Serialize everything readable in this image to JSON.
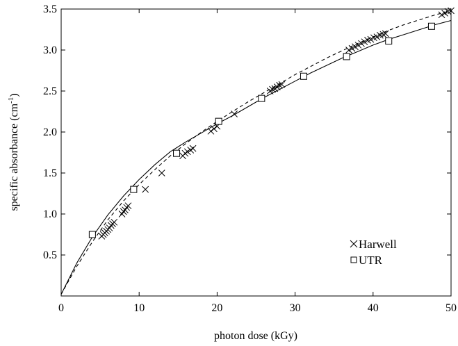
{
  "chart_data": {
    "type": "scatter",
    "title": "",
    "xlabel": "photon dose (kGy)",
    "ylabel": "specific absorbance (cm",
    "ylabel_superscript": "-1",
    "ylabel_suffix": ")",
    "xlim": [
      0,
      50
    ],
    "ylim": [
      0,
      3.5
    ],
    "xticks": [
      "0",
      "10",
      "20",
      "30",
      "40",
      "50"
    ],
    "yticks": [
      "0.5",
      "1.0",
      "1.5",
      "2.0",
      "2.5",
      "3.0",
      "3.5"
    ],
    "grid": false,
    "legend_position": "bottom-right",
    "series": [
      {
        "name": "Harwell",
        "marker": "x",
        "points": [
          [
            5.2,
            0.73
          ],
          [
            5.4,
            0.75
          ],
          [
            5.6,
            0.77
          ],
          [
            5.8,
            0.79
          ],
          [
            6.0,
            0.81
          ],
          [
            6.2,
            0.83
          ],
          [
            6.4,
            0.86
          ],
          [
            6.6,
            0.88
          ],
          [
            6.8,
            0.9
          ],
          [
            7.8,
            1.0
          ],
          [
            8.0,
            1.03
          ],
          [
            8.2,
            1.05
          ],
          [
            8.4,
            1.08
          ],
          [
            8.6,
            1.1
          ],
          [
            10.8,
            1.3
          ],
          [
            12.9,
            1.5
          ],
          [
            15.6,
            1.71
          ],
          [
            15.9,
            1.74
          ],
          [
            16.2,
            1.76
          ],
          [
            16.6,
            1.78
          ],
          [
            16.9,
            1.8
          ],
          [
            19.2,
            2.01
          ],
          [
            19.6,
            2.04
          ],
          [
            20.0,
            2.07
          ],
          [
            22.2,
            2.22
          ],
          [
            26.8,
            2.5
          ],
          [
            27.1,
            2.52
          ],
          [
            27.4,
            2.53
          ],
          [
            27.7,
            2.55
          ],
          [
            28.0,
            2.57
          ],
          [
            28.3,
            2.58
          ],
          [
            36.9,
            3.0
          ],
          [
            37.3,
            3.02
          ],
          [
            37.7,
            3.04
          ],
          [
            38.1,
            3.06
          ],
          [
            38.5,
            3.08
          ],
          [
            38.9,
            3.1
          ],
          [
            39.3,
            3.12
          ],
          [
            39.7,
            3.13
          ],
          [
            40.1,
            3.15
          ],
          [
            40.5,
            3.16
          ],
          [
            40.9,
            3.18
          ],
          [
            41.3,
            3.19
          ],
          [
            41.6,
            3.2
          ],
          [
            48.8,
            3.43
          ],
          [
            49.2,
            3.45
          ],
          [
            49.6,
            3.47
          ],
          [
            50.0,
            3.48
          ]
        ]
      },
      {
        "name": "UTR",
        "marker": "square",
        "points": [
          [
            4.0,
            0.75
          ],
          [
            9.3,
            1.3
          ],
          [
            14.8,
            1.74
          ],
          [
            20.2,
            2.13
          ],
          [
            25.7,
            2.41
          ],
          [
            31.1,
            2.68
          ],
          [
            36.6,
            2.92
          ],
          [
            42.0,
            3.11
          ],
          [
            47.5,
            3.29
          ]
        ]
      }
    ],
    "fit_lines": [
      {
        "style": "solid",
        "points": [
          [
            0,
            0.02
          ],
          [
            2,
            0.4
          ],
          [
            4,
            0.72
          ],
          [
            6,
            0.99
          ],
          [
            8,
            1.22
          ],
          [
            10,
            1.42
          ],
          [
            12,
            1.6
          ],
          [
            14,
            1.76
          ],
          [
            16,
            1.88
          ],
          [
            18,
            1.99
          ],
          [
            20,
            2.1
          ],
          [
            22,
            2.2
          ],
          [
            24,
            2.31
          ],
          [
            26,
            2.42
          ],
          [
            28,
            2.52
          ],
          [
            30,
            2.62
          ],
          [
            32,
            2.72
          ],
          [
            34,
            2.81
          ],
          [
            36,
            2.9
          ],
          [
            38,
            2.98
          ],
          [
            40,
            3.06
          ],
          [
            42,
            3.13
          ],
          [
            44,
            3.19
          ],
          [
            46,
            3.25
          ],
          [
            48,
            3.31
          ],
          [
            50,
            3.36
          ]
        ]
      },
      {
        "style": "dashed",
        "points": [
          [
            0,
            0.02
          ],
          [
            2,
            0.36
          ],
          [
            4,
            0.66
          ],
          [
            6,
            0.93
          ],
          [
            8,
            1.16
          ],
          [
            10,
            1.36
          ],
          [
            12,
            1.54
          ],
          [
            14,
            1.71
          ],
          [
            16,
            1.86
          ],
          [
            18,
            2.0
          ],
          [
            20,
            2.13
          ],
          [
            22,
            2.25
          ],
          [
            24,
            2.37
          ],
          [
            26,
            2.48
          ],
          [
            28,
            2.59
          ],
          [
            30,
            2.7
          ],
          [
            32,
            2.8
          ],
          [
            34,
            2.9
          ],
          [
            36,
            2.99
          ],
          [
            38,
            3.08
          ],
          [
            40,
            3.16
          ],
          [
            42,
            3.24
          ],
          [
            44,
            3.31
          ],
          [
            46,
            3.37
          ],
          [
            48,
            3.43
          ],
          [
            50,
            3.48
          ]
        ]
      }
    ]
  }
}
